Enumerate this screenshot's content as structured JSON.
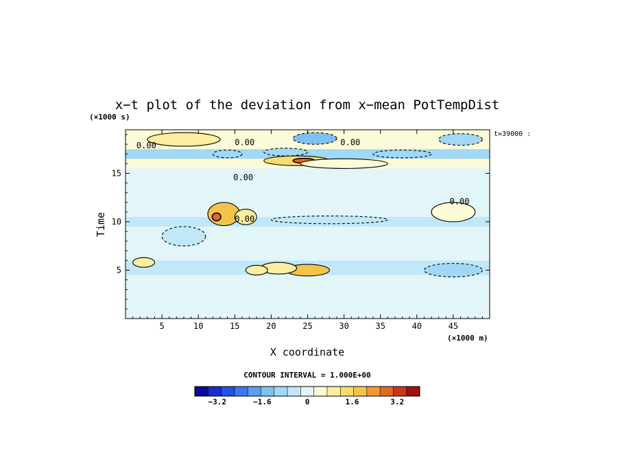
{
  "chart_data": {
    "type": "heatmap",
    "title": "x−t plot of the deviation from x−mean PotTempDist",
    "xlabel": "X coordinate",
    "ylabel": "Time",
    "x_unit": "(×1000 m)",
    "y_unit": "(×1000 s)",
    "time_label": "t=39000 :",
    "x_ticks": [
      "5",
      "10",
      "15",
      "20",
      "25",
      "30",
      "35",
      "40",
      "45"
    ],
    "y_ticks": [
      "5",
      "10",
      "15"
    ],
    "xlim": [
      0,
      50
    ],
    "ylim": [
      0,
      19.5
    ],
    "contour_labels": [
      "0.00",
      "0.00",
      "0.00",
      "0.00",
      "0.00",
      "0.00"
    ],
    "contour_interval_text": "CONTOUR INTERVAL = 1.000E+00",
    "colorbar": {
      "min": -4.0,
      "max": 4.0,
      "tick_labels": [
        "−3.2",
        "−1.6",
        "0",
        "1.6",
        "3.2"
      ],
      "tick_values": [
        -3.2,
        -1.6,
        0,
        1.6,
        3.2
      ],
      "colors": [
        "#0a0a96",
        "#1a2ad0",
        "#2450e6",
        "#3a78ee",
        "#5aa0f2",
        "#7ec0f4",
        "#a0d8f6",
        "#c0e8f8",
        "#e2f6fa",
        "#fdfbd8",
        "#fbeea0",
        "#f8dc70",
        "#f4c44a",
        "#ee9a30",
        "#e06a20",
        "#c83818",
        "#a01010"
      ]
    },
    "bands": [
      {
        "t0": 0.0,
        "t1": 4.5,
        "value": 0.2
      },
      {
        "t0": 4.5,
        "t1": 6.0,
        "value": -0.7
      },
      {
        "t0": 6.0,
        "t1": 9.5,
        "value": -0.2
      },
      {
        "t0": 9.5,
        "t1": 10.5,
        "value": -0.4
      },
      {
        "t0": 10.5,
        "t1": 15.5,
        "value": -0.15
      },
      {
        "t0": 15.5,
        "t1": 16.5,
        "value": 0.5
      },
      {
        "t0": 16.5,
        "t1": 17.5,
        "value": -0.8
      },
      {
        "t0": 17.5,
        "t1": 19.5,
        "value": 0.4
      }
    ],
    "features": [
      {
        "x": 13.5,
        "t": 10.8,
        "rx": 2.2,
        "rt": 1.2,
        "value": 1.8
      },
      {
        "x": 12.5,
        "t": 10.5,
        "rx": 0.6,
        "rt": 0.4,
        "value": 3.0
      },
      {
        "x": 16.5,
        "t": 10.5,
        "rx": 1.5,
        "rt": 0.8,
        "value": 1.0
      },
      {
        "x": 23.5,
        "t": 16.3,
        "rx": 4.5,
        "rt": 0.5,
        "value": 1.6
      },
      {
        "x": 24.5,
        "t": 16.3,
        "rx": 1.5,
        "rt": 0.25,
        "value": 2.6
      },
      {
        "x": 25.0,
        "t": 5.0,
        "rx": 3.0,
        "rt": 0.6,
        "value": 1.8
      },
      {
        "x": 21.0,
        "t": 5.2,
        "rx": 2.5,
        "rt": 0.6,
        "value": 0.8
      },
      {
        "x": 18.0,
        "t": 5.0,
        "rx": 1.5,
        "rt": 0.5,
        "value": 1.0
      },
      {
        "x": 2.5,
        "t": 5.8,
        "rx": 1.5,
        "rt": 0.5,
        "value": 0.8
      },
      {
        "x": 26.0,
        "t": 18.6,
        "rx": 3.0,
        "rt": 0.6,
        "value": -1.5
      },
      {
        "x": 22.0,
        "t": 17.2,
        "rx": 3.0,
        "rt": 0.4,
        "value": -1.1
      },
      {
        "x": 14.0,
        "t": 17.0,
        "rx": 2.0,
        "rt": 0.4,
        "value": -1.0
      },
      {
        "x": 38.0,
        "t": 17.0,
        "rx": 4.0,
        "rt": 0.4,
        "value": -0.9
      },
      {
        "x": 46.0,
        "t": 18.5,
        "rx": 3.0,
        "rt": 0.6,
        "value": -0.9
      },
      {
        "x": 8.0,
        "t": 18.5,
        "rx": 5.0,
        "rt": 0.7,
        "value": 0.9
      },
      {
        "x": 30.0,
        "t": 16.0,
        "rx": 6.0,
        "rt": 0.5,
        "value": 0.7
      },
      {
        "x": 45.0,
        "t": 11.0,
        "rx": 3.0,
        "rt": 1.0,
        "value": 0.5
      },
      {
        "x": 45.0,
        "t": 5.0,
        "rx": 4.0,
        "rt": 0.7,
        "value": -1.0
      },
      {
        "x": 8.0,
        "t": 8.5,
        "rx": 3.0,
        "rt": 1.0,
        "value": -0.6
      },
      {
        "x": 28.0,
        "t": 10.2,
        "rx": 8.0,
        "rt": 0.4,
        "value": -0.6
      }
    ]
  }
}
